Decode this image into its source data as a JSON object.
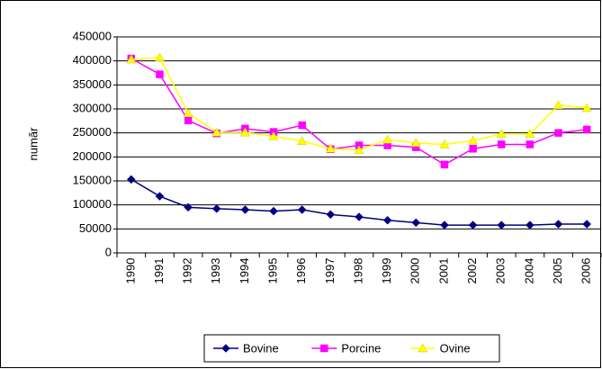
{
  "chart_data": {
    "type": "line",
    "y_label": "număr",
    "categories": [
      "1990",
      "1991",
      "1992",
      "1993",
      "1994",
      "1995",
      "1996",
      "1997",
      "1998",
      "1999",
      "2000",
      "2001",
      "2002",
      "2003",
      "2004",
      "2005",
      "2006"
    ],
    "series": [
      {
        "name": "Bovine",
        "color": "#000080",
        "marker": "diamond",
        "values": [
          153000,
          118000,
          95000,
          92000,
          90000,
          87000,
          90000,
          80000,
          75000,
          68000,
          63000,
          58000,
          58000,
          58000,
          58000,
          60000,
          60000
        ]
      },
      {
        "name": "Porcine",
        "color": "#ff00ff",
        "marker": "square",
        "values": [
          405000,
          372000,
          276000,
          249000,
          259000,
          252000,
          266000,
          216000,
          224000,
          224000,
          220000,
          184000,
          217000,
          226000,
          226000,
          250000,
          257000
        ]
      },
      {
        "name": "Ovine",
        "color": "#ffff00",
        "marker": "triangle",
        "values": [
          403000,
          407000,
          291000,
          251000,
          251000,
          243000,
          233000,
          217000,
          214000,
          236000,
          229000,
          226000,
          234000,
          248000,
          248000,
          308000,
          302000
        ]
      }
    ],
    "ylim": [
      0,
      450000
    ],
    "yticks": [
      0,
      50000,
      100000,
      150000,
      200000,
      250000,
      300000,
      350000,
      400000,
      450000
    ],
    "grid": true,
    "legend": "bottom"
  }
}
